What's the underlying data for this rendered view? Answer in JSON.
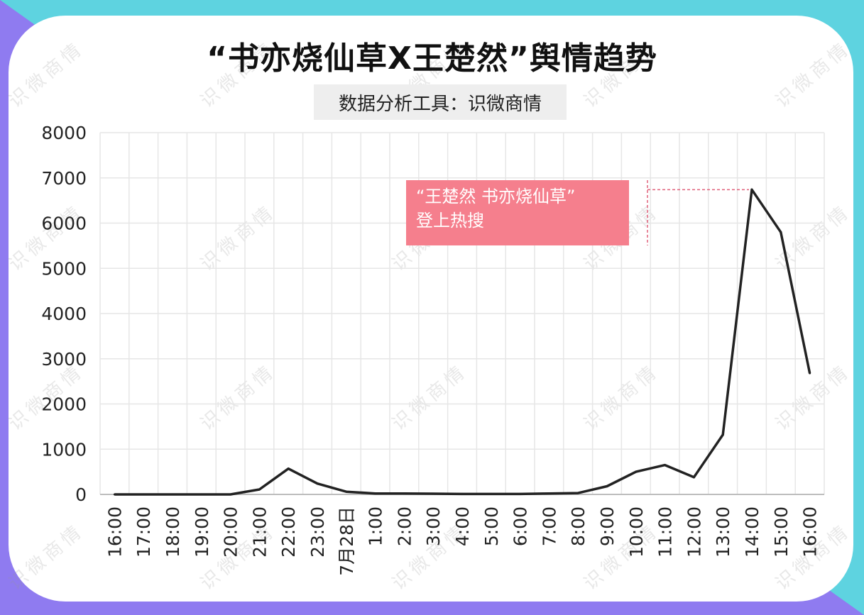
{
  "title": "“书亦烧仙草X王楚然”舆情趋势",
  "subtitle": "数据分析工具：识微商情",
  "watermark": "识微商情",
  "annotation": {
    "line1": "“王楚然 书亦烧仙草”",
    "line2": "登上热搜"
  },
  "colors": {
    "line": "#222222",
    "annotation_bg": "#f57f8d",
    "annotation_connector": "#e0607a",
    "bg_purple": "#8f7bf0",
    "bg_cyan": "#5ed3e0",
    "grid": "#e6e6e6"
  },
  "chart_data": {
    "type": "line",
    "title": "“书亦烧仙草X王楚然”舆情趋势",
    "xlabel": "",
    "ylabel": "",
    "ylim": [
      0,
      8000
    ],
    "yticks": [
      0,
      1000,
      2000,
      3000,
      4000,
      5000,
      6000,
      7000,
      8000
    ],
    "grid": true,
    "legend": "none",
    "categories": [
      "16:00",
      "17:00",
      "18:00",
      "19:00",
      "20:00",
      "21:00",
      "22:00",
      "23:00",
      "7月28日",
      "1:00",
      "2:00",
      "3:00",
      "4:00",
      "5:00",
      "6:00",
      "7:00",
      "8:00",
      "9:00",
      "10:00",
      "11:00",
      "12:00",
      "13:00",
      "14:00",
      "15:00",
      "16:00"
    ],
    "series": [
      {
        "values": [
          0,
          0,
          0,
          0,
          0,
          110,
          570,
          240,
          60,
          20,
          20,
          15,
          10,
          10,
          10,
          20,
          30,
          180,
          500,
          650,
          380,
          1320,
          6740,
          5800,
          2680
        ]
      }
    ]
  }
}
